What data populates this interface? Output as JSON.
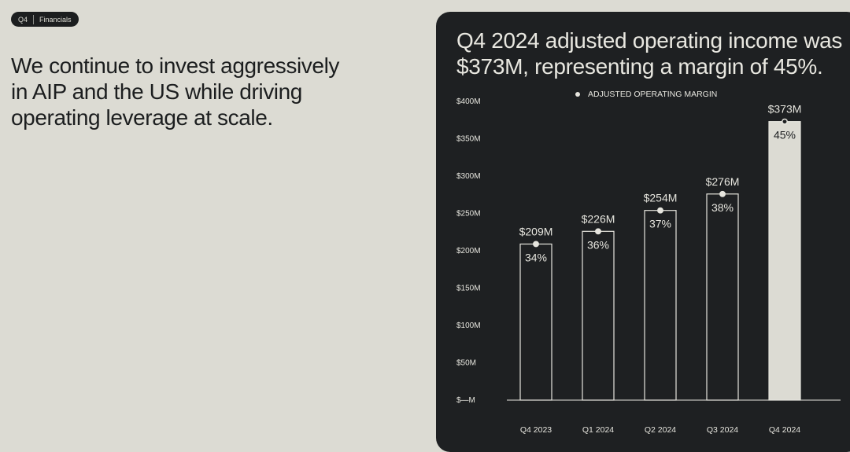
{
  "badge": {
    "quarter": "Q4",
    "section": "Financials"
  },
  "headline": "We continue to invest aggressively in AIP and the US while driving operating leverage at scale.",
  "chart_data": {
    "type": "bar",
    "title": "Q4 2024 adjusted operating income was $373M, representing a margin of 45%.",
    "legend": "ADJUSTED OPERATING MARGIN",
    "categories": [
      "Q4 2023",
      "Q1 2024",
      "Q2 2024",
      "Q3 2024",
      "Q4 2024"
    ],
    "series": [
      {
        "values": [
          209,
          226,
          254,
          276,
          373
        ]
      },
      {
        "name": "ADJUSTED OPERATING MARGIN",
        "values": [
          34,
          36,
          37,
          38,
          45
        ]
      }
    ],
    "value_labels": [
      "$209M",
      "$226M",
      "$254M",
      "$276M",
      "$373M"
    ],
    "margin_labels": [
      "34%",
      "36%",
      "37%",
      "38%",
      "45%"
    ],
    "ylim": [
      0,
      400
    ],
    "yticks": [
      0,
      50,
      100,
      150,
      200,
      250,
      300,
      350,
      400
    ],
    "ytick_labels": [
      "$—M",
      "$50M",
      "$100M",
      "$150M",
      "$200M",
      "$250M",
      "$300M",
      "$350M",
      "$400M"
    ],
    "highlight_index": 4,
    "colors": {
      "panel": "#1e2022",
      "bar_outline": "#e6e5de",
      "highlight_fill": "#dcdbd3",
      "text_light": "#e6e5de",
      "text_dark": "#1e2022"
    }
  }
}
